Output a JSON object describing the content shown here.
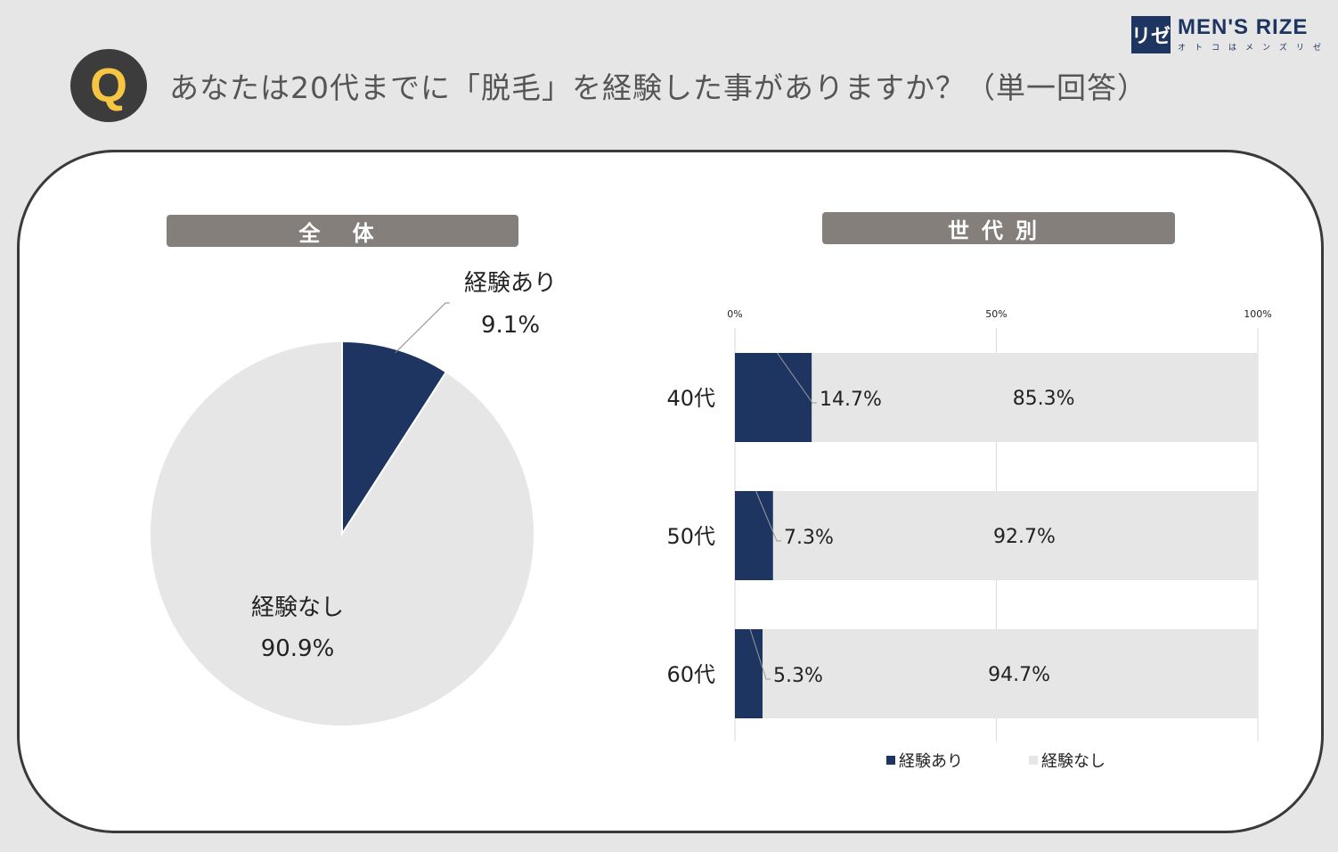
{
  "brand": {
    "mark": "リゼ",
    "name": "MEN'S RIZE",
    "sub": "オトコはメンズリゼ"
  },
  "question": {
    "badge": "Q",
    "text": "あなたは20代までに「脱毛」を経験した事がありますか？（単一回答）"
  },
  "sections": {
    "overall": "全 体",
    "by_generation": "世代別"
  },
  "colors": {
    "yes": "#1d3560",
    "no": "#e6e6e6",
    "label_bar": "#847f7b"
  },
  "chart_data": [
    {
      "type": "pie",
      "title": "全 体",
      "slices": [
        {
          "label": "経験あり",
          "value": 9.1,
          "display": "9.1%"
        },
        {
          "label": "経験なし",
          "value": 90.9,
          "display": "90.9%"
        }
      ]
    },
    {
      "type": "bar",
      "orientation": "horizontal",
      "stacked": true,
      "title": "世代別",
      "categories": [
        "40代",
        "50代",
        "60代"
      ],
      "series": [
        {
          "name": "経験あり",
          "values": [
            14.7,
            7.3,
            5.3
          ],
          "labels": [
            "14.7%",
            "7.3%",
            "5.3%"
          ]
        },
        {
          "name": "経験なし",
          "values": [
            85.3,
            92.7,
            94.7
          ],
          "labels": [
            "85.3%",
            "92.7%",
            "94.7%"
          ]
        }
      ],
      "xlim": [
        0,
        100
      ],
      "ticks": [
        0,
        50,
        100
      ],
      "tick_labels": [
        "0%",
        "50%",
        "100%"
      ],
      "grid": true,
      "legend": "bottom"
    }
  ]
}
